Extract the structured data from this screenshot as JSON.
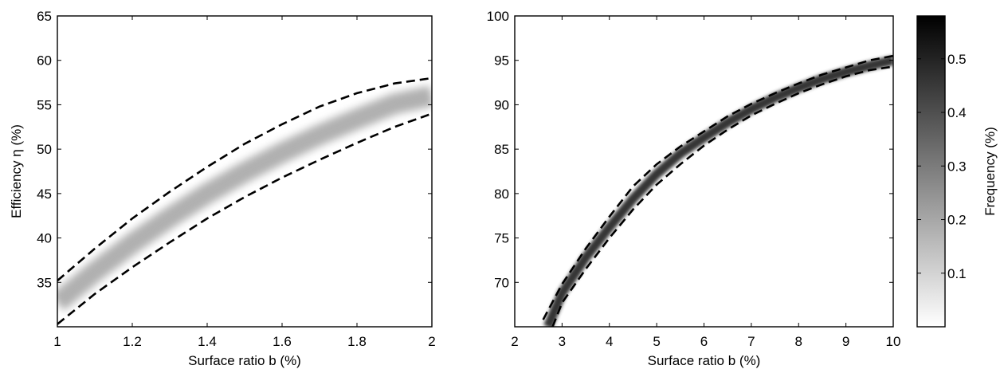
{
  "chart_data": [
    {
      "type": "heatmap",
      "xlabel": "Surface ratio b (%)",
      "ylabel": "Efficiency η (%)",
      "xlim": [
        1,
        2
      ],
      "ylim": [
        30,
        65
      ],
      "xticks": [
        1,
        1.2,
        1.4,
        1.6,
        1.8,
        2
      ],
      "xtick_labels": [
        "1",
        "1.2",
        "1.4",
        "1.6",
        "1.8",
        "2"
      ],
      "yticks": [
        35,
        40,
        45,
        50,
        55,
        60,
        65
      ],
      "ytick_labels": [
        "35",
        "40",
        "45",
        "50",
        "55",
        "60",
        "65"
      ],
      "grid": false,
      "series": [
        {
          "role": "density-ridge",
          "x": [
            1.0,
            1.1,
            1.2,
            1.3,
            1.4,
            1.5,
            1.6,
            1.7,
            1.8,
            1.9,
            2.0
          ],
          "y": [
            32.7,
            36.2,
            39.4,
            42.3,
            45.0,
            47.4,
            49.6,
            51.6,
            53.4,
            55.1,
            56.0
          ]
        },
        {
          "role": "upper-bound",
          "style": "dashed",
          "x": [
            1.0,
            1.1,
            1.2,
            1.3,
            1.4,
            1.5,
            1.6,
            1.7,
            1.8,
            1.9,
            2.0
          ],
          "y": [
            35.2,
            38.8,
            42.2,
            45.2,
            48.0,
            50.6,
            52.8,
            54.8,
            56.3,
            57.4,
            58.0
          ]
        },
        {
          "role": "lower-bound",
          "style": "dashed",
          "x": [
            1.0,
            1.1,
            1.2,
            1.3,
            1.4,
            1.5,
            1.6,
            1.7,
            1.8,
            1.9,
            2.0
          ],
          "y": [
            30.3,
            33.7,
            36.7,
            39.5,
            42.2,
            44.6,
            46.8,
            48.8,
            50.7,
            52.5,
            54.0
          ]
        }
      ]
    },
    {
      "type": "heatmap",
      "xlabel": "Surface ratio b (%)",
      "ylabel": "",
      "xlim": [
        2,
        10
      ],
      "ylim": [
        65,
        100
      ],
      "xticks": [
        2,
        3,
        4,
        5,
        6,
        7,
        8,
        9,
        10
      ],
      "xtick_labels": [
        "2",
        "3",
        "4",
        "5",
        "6",
        "7",
        "8",
        "9",
        "10"
      ],
      "yticks": [
        70,
        75,
        80,
        85,
        90,
        95,
        100
      ],
      "ytick_labels": [
        "70",
        "75",
        "80",
        "85",
        "90",
        "95",
        "100"
      ],
      "grid": false,
      "series": [
        {
          "role": "density-ridge",
          "x": [
            2.7,
            3.0,
            3.5,
            4.0,
            4.5,
            5.0,
            5.5,
            6.0,
            6.5,
            7.0,
            7.5,
            8.0,
            8.5,
            9.0,
            9.5,
            10.0
          ],
          "y": [
            65.0,
            68.8,
            72.8,
            76.2,
            79.4,
            82.2,
            84.5,
            86.3,
            88.0,
            89.5,
            90.8,
            91.9,
            92.9,
            93.7,
            94.4,
            95.0
          ]
        },
        {
          "role": "upper-bound",
          "style": "dashed",
          "x": [
            2.6,
            3.0,
            3.5,
            4.0,
            4.5,
            5.0,
            5.5,
            6.0,
            6.5,
            7.0,
            7.5,
            8.0,
            8.5,
            9.0,
            9.5,
            10.0
          ],
          "y": [
            65.8,
            69.8,
            73.8,
            77.4,
            80.8,
            83.3,
            85.3,
            87.0,
            88.7,
            90.1,
            91.3,
            92.4,
            93.4,
            94.2,
            95.0,
            95.5
          ]
        },
        {
          "role": "lower-bound",
          "style": "dashed",
          "x": [
            2.8,
            3.0,
            3.5,
            4.0,
            4.5,
            5.0,
            5.5,
            6.0,
            6.5,
            7.0,
            7.5,
            8.0,
            8.5,
            9.0,
            9.5,
            10.0
          ],
          "y": [
            65.0,
            67.7,
            71.5,
            75.0,
            78.2,
            81.0,
            83.3,
            85.4,
            87.2,
            88.8,
            90.1,
            91.3,
            92.3,
            93.2,
            93.9,
            94.3
          ]
        }
      ]
    }
  ],
  "colorbar": {
    "label": "Frequency (%)",
    "range": [
      0,
      0.58
    ],
    "ticks": [
      0.1,
      0.2,
      0.3,
      0.4,
      0.5
    ],
    "tick_labels": [
      "0.1",
      "0.2",
      "0.3",
      "0.4",
      "0.5"
    ],
    "color_low": "#ffffff",
    "color_high": "#000000"
  },
  "ridge_peak_frequency": [
    0.18,
    0.46
  ]
}
